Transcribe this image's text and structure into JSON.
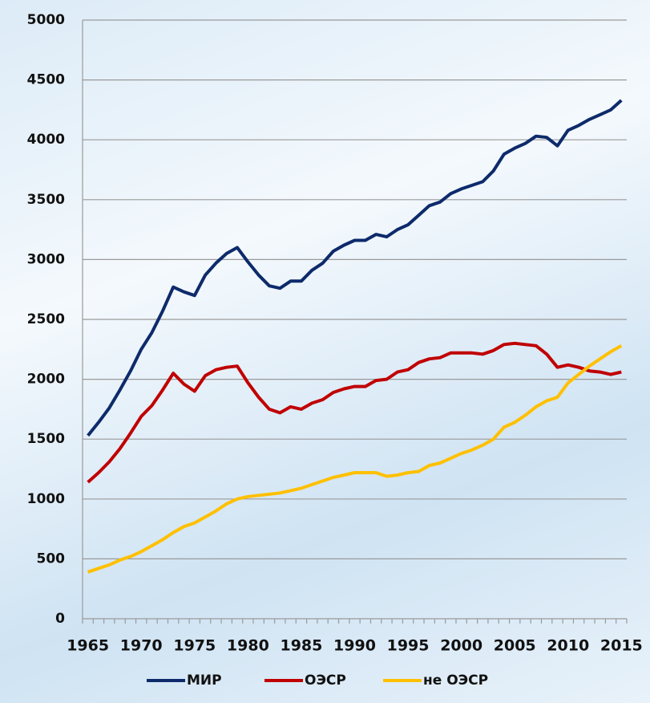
{
  "chart_data": {
    "type": "line",
    "categories": [
      "1965",
      null,
      null,
      null,
      null,
      "1970",
      null,
      null,
      null,
      null,
      "1975",
      null,
      null,
      null,
      null,
      "1980",
      null,
      null,
      null,
      null,
      "1985",
      null,
      null,
      null,
      null,
      "1990",
      null,
      null,
      null,
      null,
      "1995",
      null,
      null,
      null,
      null,
      "2000",
      null,
      null,
      null,
      null,
      "2005",
      null,
      null,
      null,
      null,
      "2010",
      null,
      null,
      null,
      null,
      "2015"
    ],
    "series": [
      {
        "name": "МИР",
        "color": "#0d2a6b",
        "values": [
          1530,
          1640,
          1760,
          1910,
          2070,
          2250,
          2390,
          2570,
          2770,
          2730,
          2700,
          2870,
          2970,
          3050,
          3100,
          2980,
          2870,
          2780,
          2760,
          2820,
          2820,
          2910,
          2970,
          3070,
          3120,
          3160,
          3160,
          3210,
          3190,
          3250,
          3290,
          3370,
          3450,
          3480,
          3550,
          3590,
          3620,
          3650,
          3740,
          3880,
          3930,
          3970,
          4030,
          4020,
          3950,
          4080,
          4120,
          4170,
          4210,
          4250,
          4330
        ]
      },
      {
        "name": "ОЭСР",
        "color": "#c00000",
        "values": [
          1140,
          1220,
          1310,
          1420,
          1550,
          1690,
          1780,
          1910,
          2050,
          1960,
          1900,
          2030,
          2080,
          2100,
          2110,
          1970,
          1850,
          1750,
          1720,
          1770,
          1750,
          1800,
          1830,
          1890,
          1920,
          1940,
          1940,
          1990,
          2000,
          2060,
          2080,
          2140,
          2170,
          2180,
          2220,
          2220,
          2220,
          2210,
          2240,
          2290,
          2300,
          2290,
          2280,
          2210,
          2100,
          2120,
          2100,
          2070,
          2060,
          2040,
          2060
        ]
      },
      {
        "name": "не ОЭСР",
        "color": "#ffc000",
        "values": [
          390,
          420,
          450,
          490,
          520,
          560,
          610,
          660,
          720,
          770,
          800,
          850,
          900,
          960,
          1000,
          1020,
          1030,
          1040,
          1050,
          1070,
          1090,
          1120,
          1150,
          1180,
          1200,
          1220,
          1220,
          1220,
          1190,
          1200,
          1220,
          1230,
          1280,
          1300,
          1340,
          1380,
          1410,
          1450,
          1500,
          1600,
          1640,
          1700,
          1770,
          1820,
          1850,
          1970,
          2040,
          2110,
          2170,
          2230,
          2280
        ]
      }
    ],
    "ylim": [
      0,
      5000
    ],
    "yticks": [
      0,
      500,
      1000,
      1500,
      2000,
      2500,
      3000,
      3500,
      4000,
      4500,
      5000
    ],
    "grid": true,
    "legend": "bottom"
  }
}
